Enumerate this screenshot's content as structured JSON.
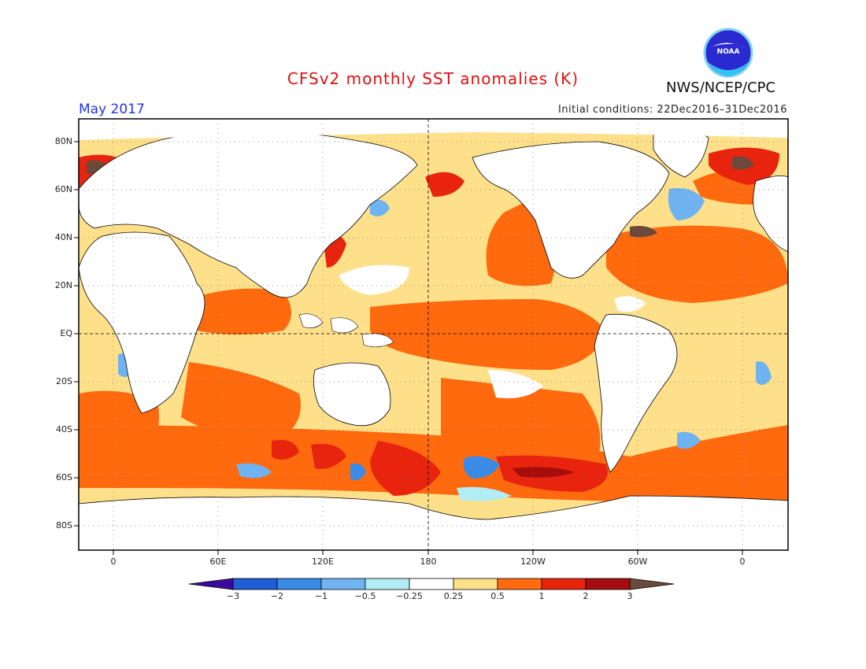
{
  "header": {
    "title": "CFSv2 monthly SST anomalies (K)",
    "org": "NWS/NCEP/CPC",
    "month": "May 2017",
    "initial_conditions": "Initial conditions: 22Dec2016–31Dec2016",
    "logo_text": "NOAA"
  },
  "map": {
    "lat_labels": [
      "80N",
      "60N",
      "40N",
      "20N",
      "EQ",
      "20S",
      "40S",
      "60S",
      "80S"
    ],
    "lon_labels": [
      "0",
      "60E",
      "120E",
      "180",
      "120W",
      "60W",
      "0"
    ]
  },
  "colorbar": {
    "ticks": [
      "−3",
      "−2",
      "−1",
      "−0.5",
      "−0.25",
      "0.25",
      "0.5",
      "1",
      "2",
      "3"
    ],
    "colors": [
      "#3b0a9c",
      "#1f5fd6",
      "#3a8ae6",
      "#6fb3f0",
      "#b2ecf5",
      "#ffffff",
      "#ffe08a",
      "#ff6a0e",
      "#e8240e",
      "#a80d0d",
      "#6b4a3c"
    ]
  }
}
